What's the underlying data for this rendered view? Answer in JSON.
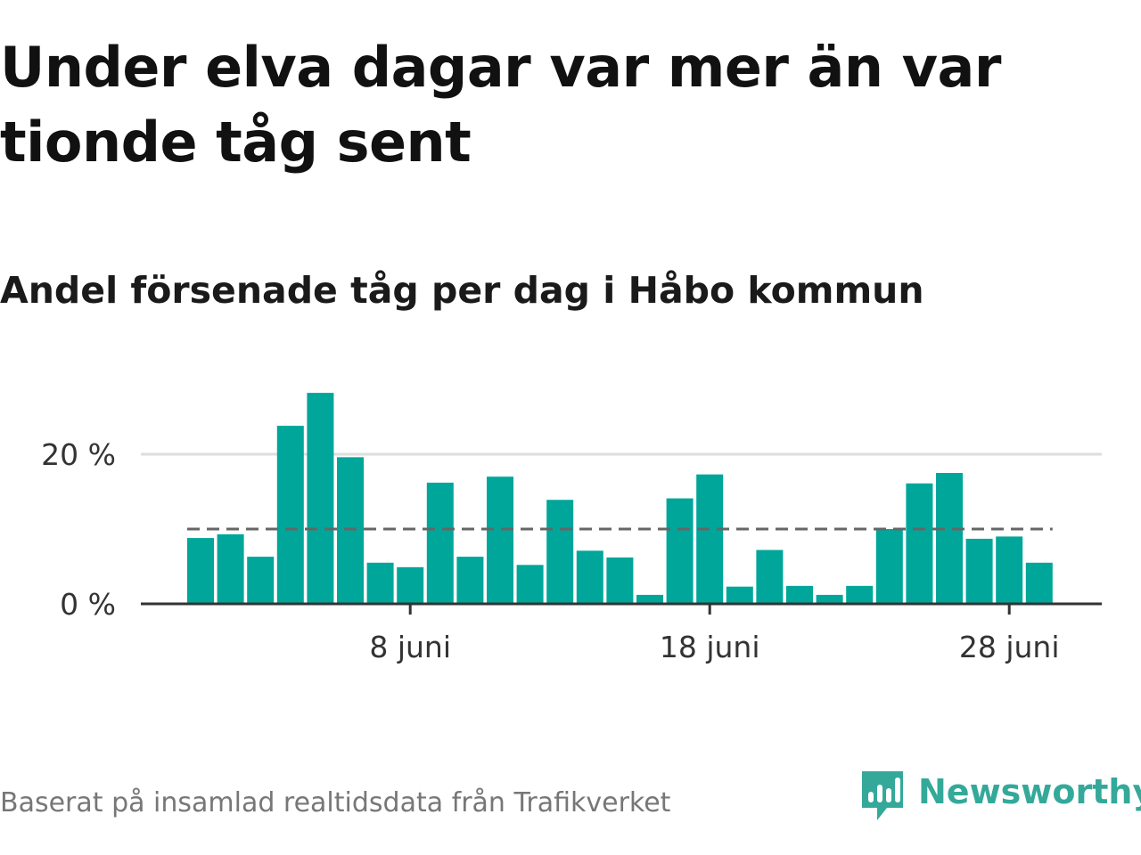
{
  "title": "Under elva dagar var mer än var tionde tåg sent",
  "subtitle": "Andel försenade tåg per dag i Håbo kommun",
  "source": "Baserat på insamlad realtidsdata från Trafikverket",
  "brand": {
    "name": "Newsworthy",
    "logo_icon": "bar-chart-speech-bubble-icon",
    "color": "#34a99a"
  },
  "colors": {
    "bar": "#00a69a",
    "reference_line": "#666666",
    "gridline": "#dddddd",
    "axis": "#333333"
  },
  "chart_data": {
    "type": "bar",
    "x_unit": "juni",
    "days": [
      1,
      2,
      3,
      4,
      5,
      6,
      7,
      8,
      9,
      10,
      11,
      12,
      13,
      14,
      15,
      16,
      17,
      18,
      19,
      20,
      21,
      22,
      23,
      24,
      25,
      26,
      27,
      28,
      29
    ],
    "values": [
      8.8,
      9.3,
      6.3,
      23.8,
      28.2,
      19.6,
      5.5,
      4.9,
      16.2,
      6.3,
      17.0,
      5.2,
      13.9,
      7.1,
      6.2,
      1.2,
      14.1,
      17.3,
      2.3,
      7.2,
      2.4,
      1.2,
      2.4,
      10.0,
      16.1,
      17.5,
      8.7,
      9.0,
      5.5
    ],
    "reference_line": {
      "value": 10,
      "style": "dashed"
    },
    "x_ticks": [
      {
        "day": 8,
        "label": "8 juni"
      },
      {
        "day": 18,
        "label": "18 juni"
      },
      {
        "day": 28,
        "label": "28 juni"
      }
    ],
    "y_ticks": [
      {
        "value": 0,
        "label": "0 %"
      },
      {
        "value": 20,
        "label": "20 %"
      }
    ],
    "ylim": [
      0,
      30
    ],
    "grid": "horizontal"
  }
}
